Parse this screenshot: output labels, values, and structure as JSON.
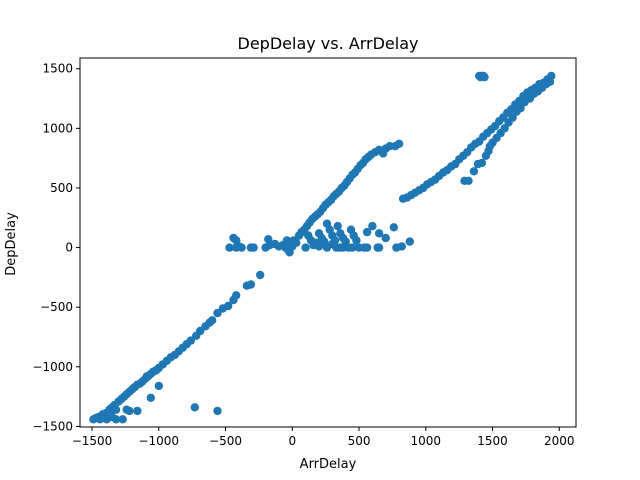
{
  "chart_data": {
    "type": "scatter",
    "title": "DepDelay vs. ArrDelay",
    "xlabel": "ArrDelay",
    "ylabel": "DepDelay",
    "xlim": [
      -1590,
      2125
    ],
    "ylim": [
      -1505,
      1590
    ],
    "xticks": [
      -1500,
      -1000,
      -500,
      0,
      500,
      1000,
      1500,
      2000
    ],
    "yticks": [
      -1500,
      -1000,
      -500,
      0,
      500,
      1000,
      1500
    ],
    "xtick_labels": [
      "−1500",
      "−1000",
      "−500",
      "0",
      "500",
      "1000",
      "1500",
      "2000"
    ],
    "ytick_labels": [
      "−1500",
      "−1000",
      "−500",
      "0",
      "500",
      "1000",
      "1500"
    ],
    "grid": false,
    "marker_color": "#1f77b4",
    "series": [
      {
        "points": [
          [
            -1490,
            -1440
          ],
          [
            -1470,
            -1430
          ],
          [
            -1450,
            -1420
          ],
          [
            -1440,
            -1440
          ],
          [
            -1420,
            -1400
          ],
          [
            -1400,
            -1390
          ],
          [
            -1390,
            -1420
          ],
          [
            -1370,
            -1360
          ],
          [
            -1350,
            -1340
          ],
          [
            -1330,
            -1320
          ],
          [
            -1320,
            -1360
          ],
          [
            -1300,
            -1290
          ],
          [
            -1280,
            -1270
          ],
          [
            -1260,
            -1250
          ],
          [
            -1240,
            -1230
          ],
          [
            -1220,
            -1210
          ],
          [
            -1200,
            -1190
          ],
          [
            -1180,
            -1170
          ],
          [
            -1160,
            -1150
          ],
          [
            -1140,
            -1140
          ],
          [
            -1120,
            -1120
          ],
          [
            -1100,
            -1100
          ],
          [
            -1080,
            -1080
          ],
          [
            -1060,
            -1060
          ],
          [
            -1040,
            -1040
          ],
          [
            -1020,
            -1030
          ],
          [
            -1000,
            -1010
          ],
          [
            -970,
            -980
          ],
          [
            -940,
            -950
          ],
          [
            -910,
            -920
          ],
          [
            -880,
            -900
          ],
          [
            -850,
            -870
          ],
          [
            -820,
            -840
          ],
          [
            -790,
            -810
          ],
          [
            -760,
            -780
          ],
          [
            -720,
            -740
          ],
          [
            -690,
            -700
          ],
          [
            -650,
            -660
          ],
          [
            -620,
            -630
          ],
          [
            -600,
            -610
          ],
          [
            -560,
            -550
          ],
          [
            -520,
            -510
          ],
          [
            -480,
            -490
          ],
          [
            -440,
            -440
          ],
          [
            -420,
            -400
          ],
          [
            -340,
            -320
          ],
          [
            -310,
            -310
          ],
          [
            -240,
            -230
          ],
          [
            -1430,
            -1430
          ],
          [
            -1390,
            -1440
          ],
          [
            -1360,
            -1380
          ],
          [
            -1350,
            -1420
          ],
          [
            -1240,
            -1360
          ],
          [
            -1220,
            -1370
          ],
          [
            -1270,
            -1440
          ],
          [
            -1320,
            -1440
          ],
          [
            -1160,
            -1370
          ],
          [
            -1060,
            -1260
          ],
          [
            -1000,
            -1160
          ],
          [
            -730,
            -1340
          ],
          [
            -560,
            -1370
          ],
          [
            -1090,
            -1080
          ],
          [
            -470,
            0
          ],
          [
            -440,
            80
          ],
          [
            -420,
            60
          ],
          [
            -420,
            0
          ],
          [
            -400,
            10
          ],
          [
            -380,
            0
          ],
          [
            -310,
            0
          ],
          [
            -290,
            0
          ],
          [
            -200,
            0
          ],
          [
            -180,
            70
          ],
          [
            -170,
            20
          ],
          [
            -130,
            30
          ],
          [
            -100,
            10
          ],
          [
            -70,
            20
          ],
          [
            -50,
            0
          ],
          [
            -40,
            60
          ],
          [
            -30,
            -20
          ],
          [
            -20,
            -40
          ],
          [
            -10,
            40
          ],
          [
            0,
            10
          ],
          [
            10,
            60
          ],
          [
            30,
            40
          ],
          [
            50,
            100
          ],
          [
            70,
            130
          ],
          [
            90,
            150
          ],
          [
            100,
            0
          ],
          [
            110,
            180
          ],
          [
            130,
            210
          ],
          [
            150,
            240
          ],
          [
            160,
            20
          ],
          [
            170,
            260
          ],
          [
            190,
            280
          ],
          [
            200,
            10
          ],
          [
            210,
            300
          ],
          [
            230,
            330
          ],
          [
            250,
            360
          ],
          [
            260,
            0
          ],
          [
            270,
            380
          ],
          [
            290,
            400
          ],
          [
            300,
            30
          ],
          [
            310,
            430
          ],
          [
            330,
            450
          ],
          [
            350,
            470
          ],
          [
            360,
            0
          ],
          [
            370,
            500
          ],
          [
            390,
            520
          ],
          [
            410,
            550
          ],
          [
            430,
            580
          ],
          [
            450,
            610
          ],
          [
            470,
            630
          ],
          [
            490,
            660
          ],
          [
            510,
            690
          ],
          [
            530,
            710
          ],
          [
            550,
            740
          ],
          [
            570,
            760
          ],
          [
            590,
            780
          ],
          [
            620,
            800
          ],
          [
            650,
            820
          ],
          [
            680,
            790
          ],
          [
            700,
            830
          ],
          [
            730,
            850
          ],
          [
            770,
            850
          ],
          [
            800,
            870
          ],
          [
            120,
            100
          ],
          [
            140,
            60
          ],
          [
            180,
            40
          ],
          [
            200,
            120
          ],
          [
            220,
            80
          ],
          [
            240,
            50
          ],
          [
            260,
            200
          ],
          [
            280,
            150
          ],
          [
            300,
            100
          ],
          [
            320,
            60
          ],
          [
            340,
            180
          ],
          [
            360,
            120
          ],
          [
            380,
            80
          ],
          [
            400,
            50
          ],
          [
            420,
            0
          ],
          [
            440,
            150
          ],
          [
            460,
            100
          ],
          [
            480,
            60
          ],
          [
            500,
            0
          ],
          [
            560,
            130
          ],
          [
            600,
            180
          ],
          [
            650,
            120
          ],
          [
            700,
            80
          ],
          [
            760,
            170
          ],
          [
            780,
            0
          ],
          [
            820,
            10
          ],
          [
            880,
            50
          ],
          [
            560,
            0
          ],
          [
            640,
            0
          ],
          [
            450,
            0
          ],
          [
            650,
            0
          ],
          [
            330,
            0
          ],
          [
            380,
            0
          ],
          [
            540,
            0
          ],
          [
            830,
            410
          ],
          [
            860,
            420
          ],
          [
            890,
            440
          ],
          [
            920,
            460
          ],
          [
            950,
            480
          ],
          [
            980,
            500
          ],
          [
            1010,
            530
          ],
          [
            1040,
            550
          ],
          [
            1070,
            570
          ],
          [
            1100,
            600
          ],
          [
            1130,
            630
          ],
          [
            1160,
            650
          ],
          [
            1190,
            680
          ],
          [
            1220,
            700
          ],
          [
            1250,
            740
          ],
          [
            1280,
            770
          ],
          [
            1310,
            800
          ],
          [
            1340,
            840
          ],
          [
            1370,
            870
          ],
          [
            1400,
            890
          ],
          [
            1430,
            930
          ],
          [
            1460,
            960
          ],
          [
            1490,
            990
          ],
          [
            1520,
            1020
          ],
          [
            1550,
            1060
          ],
          [
            1580,
            1090
          ],
          [
            1610,
            1130
          ],
          [
            1640,
            1160
          ],
          [
            1670,
            1200
          ],
          [
            1700,
            1230
          ],
          [
            1730,
            1270
          ],
          [
            1760,
            1300
          ],
          [
            1790,
            1320
          ],
          [
            1820,
            1340
          ],
          [
            1850,
            1370
          ],
          [
            1880,
            1380
          ],
          [
            1910,
            1410
          ],
          [
            1940,
            1440
          ],
          [
            1290,
            560
          ],
          [
            1320,
            560
          ],
          [
            1360,
            640
          ],
          [
            1390,
            700
          ],
          [
            1420,
            710
          ],
          [
            1450,
            770
          ],
          [
            1470,
            810
          ],
          [
            1480,
            850
          ],
          [
            1500,
            880
          ],
          [
            1530,
            920
          ],
          [
            1560,
            960
          ],
          [
            1590,
            1000
          ],
          [
            1620,
            1050
          ],
          [
            1650,
            1090
          ],
          [
            1680,
            1140
          ],
          [
            1710,
            1170
          ],
          [
            1740,
            1220
          ],
          [
            1780,
            1250
          ],
          [
            1810,
            1290
          ],
          [
            1840,
            1310
          ],
          [
            1870,
            1340
          ],
          [
            1900,
            1370
          ],
          [
            1930,
            1390
          ],
          [
            1400,
            1440
          ],
          [
            1420,
            1440
          ],
          [
            1440,
            1430
          ],
          [
            1410,
            1430
          ],
          [
            1430,
            1440
          ]
        ]
      }
    ]
  }
}
